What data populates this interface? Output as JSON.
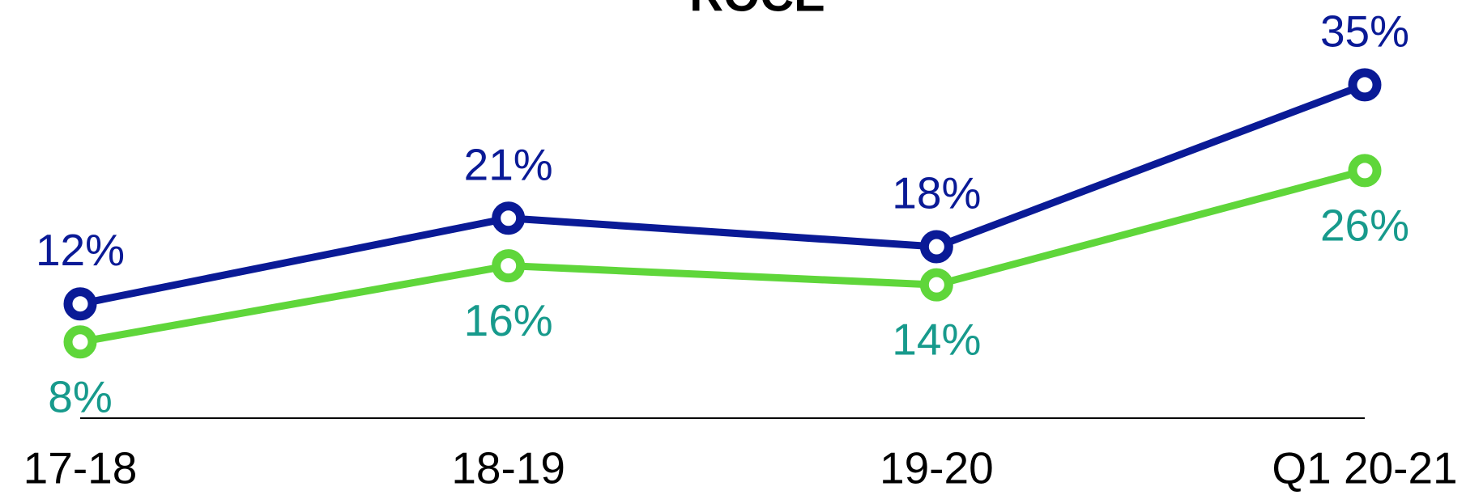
{
  "chart_data": {
    "type": "line",
    "title": "ROCE",
    "categories": [
      "17-18",
      "18-19",
      "19-20",
      "Q1 20-21"
    ],
    "ylim": [
      0,
      40
    ],
    "series": [
      {
        "color": "#0a1a96",
        "label_color": "#0a1a96",
        "label_position": "above",
        "values": [
          12,
          21,
          18,
          35
        ],
        "value_labels": [
          "12%",
          "21%",
          "18%",
          "35%"
        ]
      },
      {
        "color": "#5fd63a",
        "label_color": "#179a8c",
        "label_position": "below",
        "values": [
          8,
          16,
          14,
          26
        ],
        "value_labels": [
          "8%",
          "16%",
          "14%",
          "26%"
        ]
      }
    ]
  }
}
